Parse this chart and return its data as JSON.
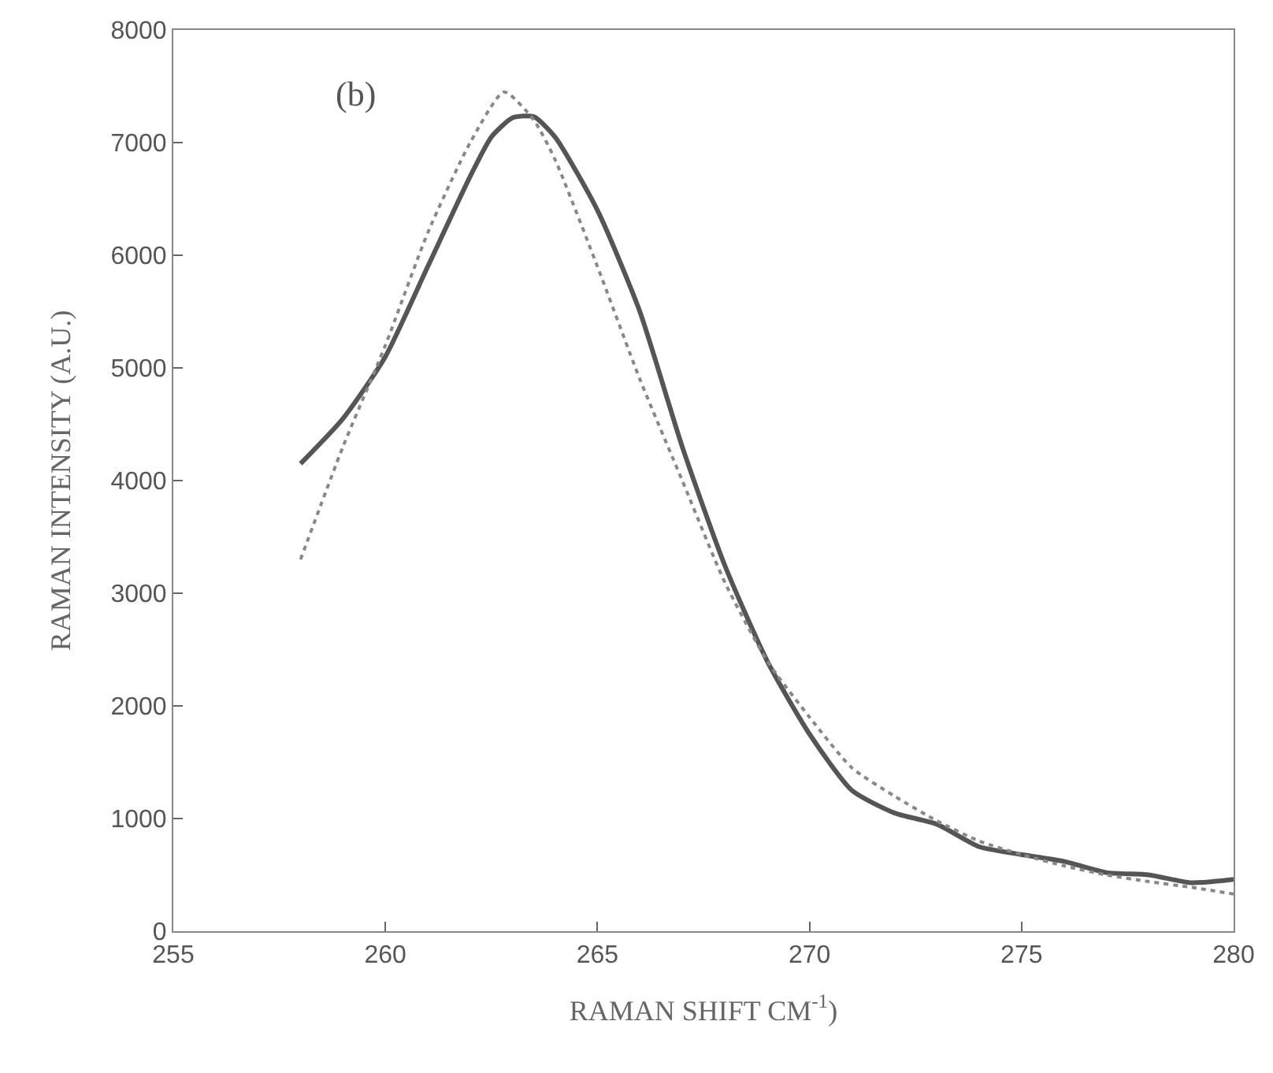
{
  "chart_data": {
    "type": "line",
    "xlabel": "RAMAN SHIFT CM$^{-1}$)",
    "ylabel": "RAMAN INTENSITY (A.U.)",
    "annotations": [
      "(b)"
    ],
    "xlim": [
      255,
      280
    ],
    "xticks": [
      255,
      260,
      265,
      270,
      275,
      280
    ],
    "ylim": [
      0,
      8000
    ],
    "yticks": [
      0,
      1000,
      2000,
      3000,
      4000,
      5000,
      6000,
      7000,
      8000
    ],
    "grid": false,
    "marker": "none",
    "series": [
      {
        "color": "#555555",
        "line_style": "solid",
        "x": [
          258,
          259,
          260,
          261,
          262,
          262.5,
          263,
          263.5,
          264,
          265,
          266,
          267,
          268,
          269,
          270,
          271,
          272,
          273,
          274,
          275,
          276,
          277,
          278,
          279,
          280
        ],
        "values": [
          4150,
          4550,
          5100,
          5900,
          6700,
          7050,
          7220,
          7230,
          7050,
          6400,
          5500,
          4300,
          3250,
          2400,
          1750,
          1250,
          1050,
          950,
          750,
          680,
          620,
          520,
          500,
          430,
          460
        ]
      },
      {
        "color": "#888888",
        "line_style": "dotted",
        "x": [
          258,
          259,
          260,
          261,
          262,
          262.8,
          263.5,
          264,
          265,
          266,
          267,
          268,
          269,
          270,
          271,
          272,
          273,
          274,
          275,
          276,
          277,
          278,
          279,
          280
        ],
        "values": [
          3300,
          4300,
          5200,
          6200,
          7000,
          7450,
          7200,
          6850,
          5900,
          4900,
          4000,
          3100,
          2400,
          1900,
          1450,
          1200,
          980,
          800,
          680,
          580,
          500,
          440,
          390,
          330
        ]
      }
    ]
  }
}
